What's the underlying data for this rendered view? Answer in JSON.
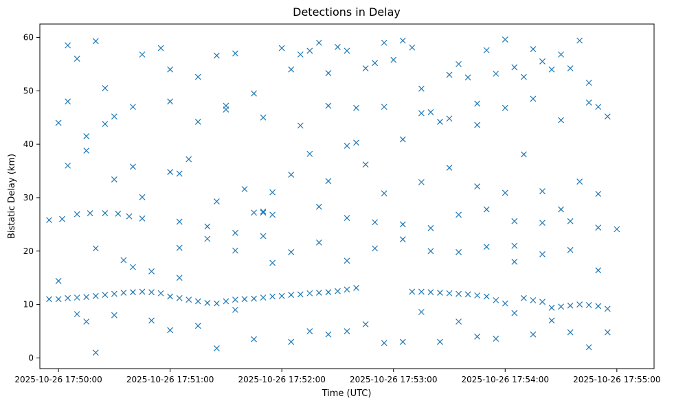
{
  "chart_data": {
    "type": "scatter",
    "title": "Detections in Delay",
    "xlabel": "Time (UTC)",
    "ylabel": "Bistatic Delay (km)",
    "x_ticks": [
      "2025-10-26 17:50:00",
      "2025-10-26 17:51:00",
      "2025-10-26 17:52:00",
      "2025-10-26 17:53:00",
      "2025-10-26 17:54:00",
      "2025-10-26 17:55:00"
    ],
    "y_ticks": [
      0,
      10,
      20,
      30,
      40,
      50,
      60
    ],
    "x_range": [
      "2025-10-26 17:49:50",
      "2025-10-26 17:55:20"
    ],
    "ylim": [
      -2,
      62.5
    ],
    "grid": false,
    "marker": "x",
    "color": "#1f77b4",
    "series": [
      {
        "points": [
          [
            "2025-10-26 17:49:55",
            11.0
          ],
          [
            "2025-10-26 17:50:00",
            11.0
          ],
          [
            "2025-10-26 17:50:05",
            11.2
          ],
          [
            "2025-10-26 17:50:10",
            11.3
          ],
          [
            "2025-10-26 17:50:15",
            11.4
          ],
          [
            "2025-10-26 17:50:20",
            11.6
          ],
          [
            "2025-10-26 17:50:25",
            11.8
          ],
          [
            "2025-10-26 17:50:30",
            12.0
          ],
          [
            "2025-10-26 17:50:35",
            12.2
          ],
          [
            "2025-10-26 17:50:40",
            12.3
          ],
          [
            "2025-10-26 17:50:45",
            12.4
          ],
          [
            "2025-10-26 17:50:50",
            12.3
          ],
          [
            "2025-10-26 17:50:55",
            12.1
          ],
          [
            "2025-10-26 17:51:00",
            11.5
          ],
          [
            "2025-10-26 17:51:05",
            11.2
          ],
          [
            "2025-10-26 17:51:10",
            10.9
          ],
          [
            "2025-10-26 17:51:15",
            10.6
          ],
          [
            "2025-10-26 17:51:20",
            10.3
          ],
          [
            "2025-10-26 17:51:25",
            10.2
          ],
          [
            "2025-10-26 17:51:30",
            10.6
          ],
          [
            "2025-10-26 17:51:35",
            10.9
          ],
          [
            "2025-10-26 17:51:40",
            11.0
          ],
          [
            "2025-10-26 17:51:45",
            11.1
          ],
          [
            "2025-10-26 17:51:50",
            11.3
          ],
          [
            "2025-10-26 17:51:55",
            11.5
          ],
          [
            "2025-10-26 17:52:00",
            11.6
          ],
          [
            "2025-10-26 17:52:05",
            11.8
          ],
          [
            "2025-10-26 17:52:10",
            11.9
          ],
          [
            "2025-10-26 17:52:15",
            12.1
          ],
          [
            "2025-10-26 17:52:20",
            12.2
          ],
          [
            "2025-10-26 17:52:25",
            12.3
          ],
          [
            "2025-10-26 17:52:30",
            12.5
          ],
          [
            "2025-10-26 17:52:35",
            12.8
          ],
          [
            "2025-10-26 17:52:40",
            13.1
          ],
          [
            "2025-10-26 17:53:10",
            12.4
          ],
          [
            "2025-10-26 17:53:15",
            12.4
          ],
          [
            "2025-10-26 17:53:20",
            12.3
          ],
          [
            "2025-10-26 17:53:25",
            12.2
          ],
          [
            "2025-10-26 17:53:30",
            12.1
          ],
          [
            "2025-10-26 17:53:35",
            12.0
          ],
          [
            "2025-10-26 17:53:40",
            11.9
          ],
          [
            "2025-10-26 17:53:45",
            11.7
          ],
          [
            "2025-10-26 17:53:50",
            11.5
          ],
          [
            "2025-10-26 17:53:55",
            10.8
          ],
          [
            "2025-10-26 17:54:00",
            10.2
          ],
          [
            "2025-10-26 17:54:05",
            8.4
          ],
          [
            "2025-10-26 17:54:10",
            11.2
          ],
          [
            "2025-10-26 17:54:15",
            10.8
          ],
          [
            "2025-10-26 17:54:20",
            10.5
          ],
          [
            "2025-10-26 17:54:25",
            9.4
          ],
          [
            "2025-10-26 17:54:30",
            9.6
          ],
          [
            "2025-10-26 17:54:35",
            9.8
          ],
          [
            "2025-10-26 17:54:40",
            10.0
          ],
          [
            "2025-10-26 17:54:45",
            9.9
          ],
          [
            "2025-10-26 17:54:50",
            9.7
          ],
          [
            "2025-10-26 17:54:55",
            9.2
          ],
          [
            "2025-10-26 17:49:55",
            25.8
          ],
          [
            "2025-10-26 17:50:02",
            26.0
          ],
          [
            "2025-10-26 17:50:10",
            26.9
          ],
          [
            "2025-10-26 17:50:17",
            27.1
          ],
          [
            "2025-10-26 17:50:25",
            27.1
          ],
          [
            "2025-10-26 17:50:32",
            27.0
          ],
          [
            "2025-10-26 17:50:38",
            26.5
          ],
          [
            "2025-10-26 17:50:45",
            26.1
          ],
          [
            "2025-10-26 17:51:05",
            25.5
          ],
          [
            "2025-10-26 17:51:20",
            24.6
          ],
          [
            "2025-10-26 17:51:35",
            23.4
          ],
          [
            "2025-10-26 17:51:45",
            27.2
          ],
          [
            "2025-10-26 17:51:50",
            27.2
          ],
          [
            "2025-10-26 17:51:55",
            26.8
          ],
          [
            "2025-10-26 17:52:20",
            28.3
          ],
          [
            "2025-10-26 17:52:35",
            26.2
          ],
          [
            "2025-10-26 17:52:50",
            25.4
          ],
          [
            "2025-10-26 17:53:05",
            25.0
          ],
          [
            "2025-10-26 17:53:20",
            24.3
          ],
          [
            "2025-10-26 17:53:35",
            26.8
          ],
          [
            "2025-10-26 17:53:50",
            27.8
          ],
          [
            "2025-10-26 17:54:05",
            25.6
          ],
          [
            "2025-10-26 17:54:20",
            25.3
          ],
          [
            "2025-10-26 17:54:35",
            25.6
          ],
          [
            "2025-10-26 17:54:50",
            24.4
          ],
          [
            "2025-10-26 17:55:00",
            24.1
          ],
          [
            "2025-10-26 17:50:00",
            44.0
          ],
          [
            "2025-10-26 17:50:05",
            58.5
          ],
          [
            "2025-10-26 17:50:10",
            56.0
          ],
          [
            "2025-10-26 17:50:15",
            41.5
          ],
          [
            "2025-10-26 17:50:20",
            59.3
          ],
          [
            "2025-10-26 17:50:25",
            50.5
          ],
          [
            "2025-10-26 17:50:30",
            45.2
          ],
          [
            "2025-10-26 17:50:40",
            35.8
          ],
          [
            "2025-10-26 17:50:45",
            56.8
          ],
          [
            "2025-10-26 17:50:55",
            58.0
          ],
          [
            "2025-10-26 17:51:00",
            54.0
          ],
          [
            "2025-10-26 17:51:05",
            34.5
          ],
          [
            "2025-10-26 17:51:15",
            52.6
          ],
          [
            "2025-10-26 17:51:25",
            56.6
          ],
          [
            "2025-10-26 17:51:30",
            46.5
          ],
          [
            "2025-10-26 17:51:35",
            57.0
          ],
          [
            "2025-10-26 17:51:45",
            49.5
          ],
          [
            "2025-10-26 17:51:55",
            31.0
          ],
          [
            "2025-10-26 17:52:00",
            58.0
          ],
          [
            "2025-10-26 17:52:05",
            54.0
          ],
          [
            "2025-10-26 17:52:10",
            56.8
          ],
          [
            "2025-10-26 17:52:15",
            57.5
          ],
          [
            "2025-10-26 17:52:20",
            59.0
          ],
          [
            "2025-10-26 17:52:25",
            53.3
          ],
          [
            "2025-10-26 17:52:30",
            58.2
          ],
          [
            "2025-10-26 17:52:35",
            57.5
          ],
          [
            "2025-10-26 17:52:40",
            40.3
          ],
          [
            "2025-10-26 17:52:45",
            54.2
          ],
          [
            "2025-10-26 17:52:50",
            55.2
          ],
          [
            "2025-10-26 17:52:55",
            59.0
          ],
          [
            "2025-10-26 17:53:00",
            55.8
          ],
          [
            "2025-10-26 17:53:05",
            59.4
          ],
          [
            "2025-10-26 17:53:10",
            58.1
          ],
          [
            "2025-10-26 17:53:15",
            50.4
          ],
          [
            "2025-10-26 17:53:20",
            46.0
          ],
          [
            "2025-10-26 17:53:25",
            44.2
          ],
          [
            "2025-10-26 17:53:30",
            53.0
          ],
          [
            "2025-10-26 17:53:35",
            55.0
          ],
          [
            "2025-10-26 17:53:40",
            52.5
          ],
          [
            "2025-10-26 17:53:45",
            47.6
          ],
          [
            "2025-10-26 17:53:50",
            57.6
          ],
          [
            "2025-10-26 17:53:55",
            53.2
          ],
          [
            "2025-10-26 17:54:00",
            59.6
          ],
          [
            "2025-10-26 17:54:05",
            54.4
          ],
          [
            "2025-10-26 17:54:10",
            52.6
          ],
          [
            "2025-10-26 17:54:15",
            57.8
          ],
          [
            "2025-10-26 17:54:20",
            55.5
          ],
          [
            "2025-10-26 17:54:25",
            54.0
          ],
          [
            "2025-10-26 17:54:30",
            56.8
          ],
          [
            "2025-10-26 17:54:35",
            54.2
          ],
          [
            "2025-10-26 17:54:40",
            59.4
          ],
          [
            "2025-10-26 17:54:45",
            51.5
          ],
          [
            "2025-10-26 17:54:50",
            47.0
          ],
          [
            "2025-10-26 17:54:55",
            45.2
          ],
          [
            "2025-10-26 17:50:05",
            36.0
          ],
          [
            "2025-10-26 17:50:15",
            38.8
          ],
          [
            "2025-10-26 17:50:30",
            33.4
          ],
          [
            "2025-10-26 17:50:45",
            30.1
          ],
          [
            "2025-10-26 17:51:00",
            34.8
          ],
          [
            "2025-10-26 17:51:10",
            37.2
          ],
          [
            "2025-10-26 17:51:25",
            29.3
          ],
          [
            "2025-10-26 17:51:40",
            31.6
          ],
          [
            "2025-10-26 17:51:50",
            27.4
          ],
          [
            "2025-10-26 17:52:05",
            34.3
          ],
          [
            "2025-10-26 17:52:15",
            38.2
          ],
          [
            "2025-10-26 17:52:25",
            33.1
          ],
          [
            "2025-10-26 17:52:35",
            39.7
          ],
          [
            "2025-10-26 17:52:45",
            36.2
          ],
          [
            "2025-10-26 17:52:55",
            30.8
          ],
          [
            "2025-10-26 17:53:05",
            40.9
          ],
          [
            "2025-10-26 17:53:15",
            32.9
          ],
          [
            "2025-10-26 17:53:30",
            35.6
          ],
          [
            "2025-10-26 17:53:45",
            32.1
          ],
          [
            "2025-10-26 17:54:00",
            30.9
          ],
          [
            "2025-10-26 17:54:10",
            38.1
          ],
          [
            "2025-10-26 17:54:20",
            31.2
          ],
          [
            "2025-10-26 17:54:30",
            27.8
          ],
          [
            "2025-10-26 17:54:40",
            33.0
          ],
          [
            "2025-10-26 17:54:50",
            30.7
          ],
          [
            "2025-10-26 17:50:00",
            14.4
          ],
          [
            "2025-10-26 17:50:10",
            8.2
          ],
          [
            "2025-10-26 17:50:15",
            6.8
          ],
          [
            "2025-10-26 17:50:20",
            1.0
          ],
          [
            "2025-10-26 17:50:30",
            8.0
          ],
          [
            "2025-10-26 17:50:40",
            17.0
          ],
          [
            "2025-10-26 17:50:50",
            7.0
          ],
          [
            "2025-10-26 17:51:00",
            5.2
          ],
          [
            "2025-10-26 17:51:05",
            15.0
          ],
          [
            "2025-10-26 17:51:15",
            6.0
          ],
          [
            "2025-10-26 17:51:25",
            1.8
          ],
          [
            "2025-10-26 17:51:35",
            9.0
          ],
          [
            "2025-10-26 17:51:45",
            3.5
          ],
          [
            "2025-10-26 17:51:55",
            17.8
          ],
          [
            "2025-10-26 17:52:05",
            3.0
          ],
          [
            "2025-10-26 17:52:15",
            5.0
          ],
          [
            "2025-10-26 17:52:25",
            4.4
          ],
          [
            "2025-10-26 17:52:35",
            5.0
          ],
          [
            "2025-10-26 17:52:45",
            6.3
          ],
          [
            "2025-10-26 17:52:55",
            2.8
          ],
          [
            "2025-10-26 17:53:05",
            3.0
          ],
          [
            "2025-10-26 17:53:15",
            8.6
          ],
          [
            "2025-10-26 17:53:25",
            3.0
          ],
          [
            "2025-10-26 17:53:35",
            6.8
          ],
          [
            "2025-10-26 17:53:45",
            4.0
          ],
          [
            "2025-10-26 17:53:55",
            3.6
          ],
          [
            "2025-10-26 17:54:05",
            18.0
          ],
          [
            "2025-10-26 17:54:15",
            4.4
          ],
          [
            "2025-10-26 17:54:25",
            7.0
          ],
          [
            "2025-10-26 17:54:35",
            4.8
          ],
          [
            "2025-10-26 17:54:45",
            2.0
          ],
          [
            "2025-10-26 17:54:55",
            4.8
          ],
          [
            "2025-10-26 17:50:20",
            20.5
          ],
          [
            "2025-10-26 17:50:35",
            18.3
          ],
          [
            "2025-10-26 17:50:50",
            16.2
          ],
          [
            "2025-10-26 17:51:05",
            20.6
          ],
          [
            "2025-10-26 17:51:20",
            22.3
          ],
          [
            "2025-10-26 17:51:35",
            20.1
          ],
          [
            "2025-10-26 17:51:50",
            22.8
          ],
          [
            "2025-10-26 17:52:05",
            19.8
          ],
          [
            "2025-10-26 17:52:20",
            21.6
          ],
          [
            "2025-10-26 17:52:35",
            18.2
          ],
          [
            "2025-10-26 17:52:50",
            20.5
          ],
          [
            "2025-10-26 17:53:05",
            22.2
          ],
          [
            "2025-10-26 17:53:20",
            20.0
          ],
          [
            "2025-10-26 17:53:35",
            19.8
          ],
          [
            "2025-10-26 17:53:50",
            20.8
          ],
          [
            "2025-10-26 17:54:05",
            21.0
          ],
          [
            "2025-10-26 17:54:20",
            19.4
          ],
          [
            "2025-10-26 17:54:35",
            20.2
          ],
          [
            "2025-10-26 17:54:50",
            16.4
          ],
          [
            "2025-10-26 17:50:05",
            48.0
          ],
          [
            "2025-10-26 17:50:25",
            43.8
          ],
          [
            "2025-10-26 17:50:40",
            47.0
          ],
          [
            "2025-10-26 17:51:00",
            48.0
          ],
          [
            "2025-10-26 17:51:15",
            44.2
          ],
          [
            "2025-10-26 17:51:30",
            47.2
          ],
          [
            "2025-10-26 17:51:50",
            45.0
          ],
          [
            "2025-10-26 17:52:10",
            43.5
          ],
          [
            "2025-10-26 17:52:25",
            47.2
          ],
          [
            "2025-10-26 17:52:40",
            46.8
          ],
          [
            "2025-10-26 17:52:55",
            47.0
          ],
          [
            "2025-10-26 17:53:15",
            45.8
          ],
          [
            "2025-10-26 17:53:30",
            44.8
          ],
          [
            "2025-10-26 17:53:45",
            43.6
          ],
          [
            "2025-10-26 17:54:00",
            46.8
          ],
          [
            "2025-10-26 17:54:15",
            48.5
          ],
          [
            "2025-10-26 17:54:30",
            44.5
          ],
          [
            "2025-10-26 17:54:45",
            47.8
          ]
        ]
      }
    ]
  }
}
